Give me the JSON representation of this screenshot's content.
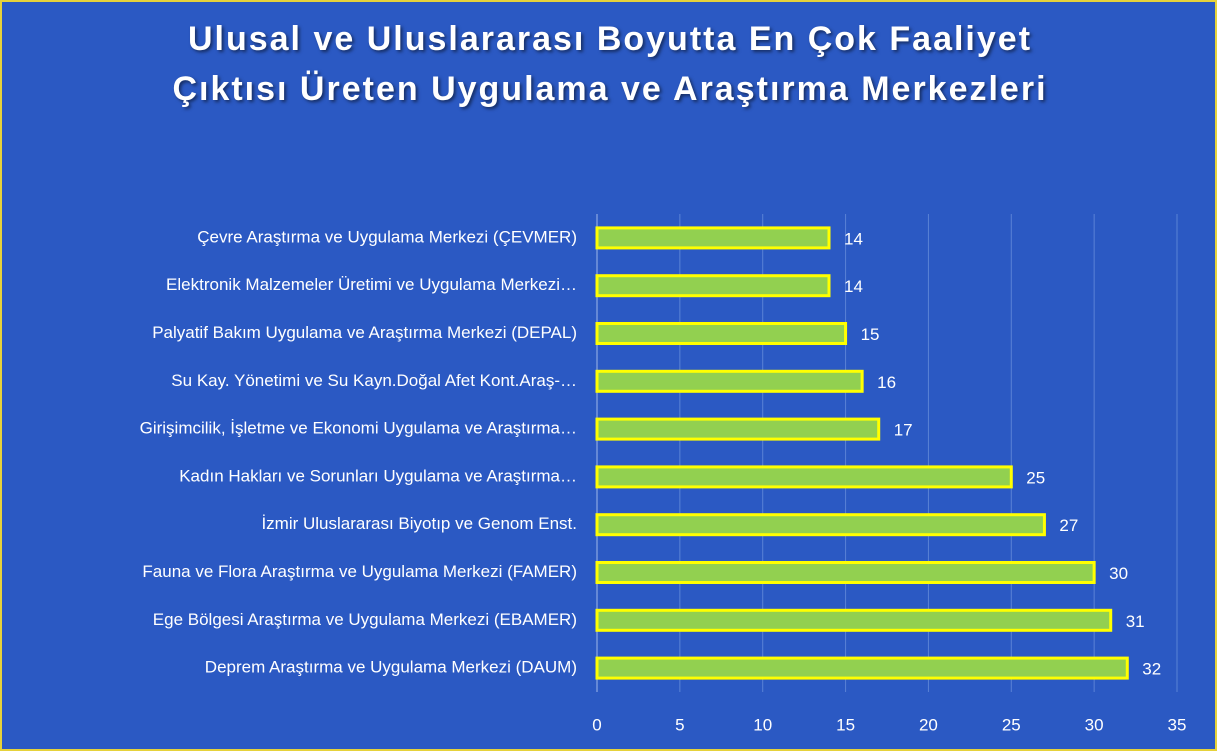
{
  "chart_data": {
    "type": "bar",
    "title": "Ulusal ve Uluslararası Boyutta En Çok Faaliyet Çıktısı Üreten Uygulama ve Araştırma Merkezleri",
    "categories": [
      "Çevre Araştırma ve Uygulama Merkezi (ÇEVMER)",
      "Elektronik Malzemeler Üretimi ve Uygulama Merkezi…",
      "Palyatif Bakım Uygulama ve Araştırma Merkezi (DEPAL)",
      "Su Kay. Yönetimi ve Su Kayn.Doğal Afet Kont.Araş-…",
      "Girişimcilik, İşletme ve Ekonomi Uygulama ve Araştırma…",
      "Kadın Hakları ve Sorunları Uygulama ve Araştırma…",
      "İzmir Uluslararası Biyotıp ve Genom Enst.",
      "Fauna ve Flora Araştırma ve Uygulama Merkezi (FAMER)",
      "Ege Bölgesi Araştırma ve Uygulama Merkezi (EBAMER)",
      "Deprem Araştırma ve Uygulama Merkezi (DAUM)"
    ],
    "values": [
      14,
      14,
      15,
      16,
      17,
      25,
      27,
      30,
      31,
      32
    ],
    "color": "#92d050",
    "xlim": [
      0,
      35
    ],
    "xticks": [
      0,
      5,
      10,
      15,
      20,
      25,
      30,
      35
    ],
    "grid": true
  }
}
